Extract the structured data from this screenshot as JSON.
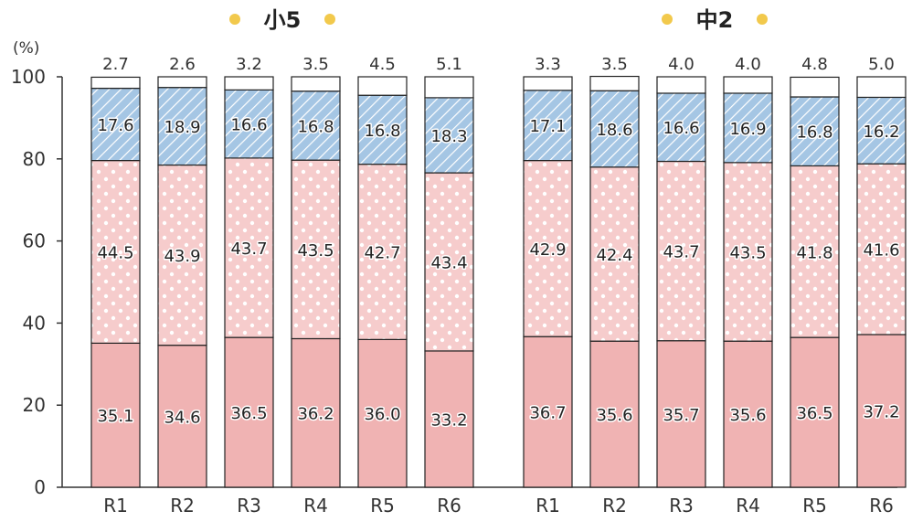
{
  "chart_data": {
    "type": "bar",
    "stacked": true,
    "unit": "(%)",
    "ylim": [
      0,
      100
    ],
    "yticks": [
      0,
      20,
      40,
      60,
      80,
      100
    ],
    "groups": [
      {
        "title": "小5",
        "categories": [
          "R1",
          "R2",
          "R3",
          "R4",
          "R5",
          "R6"
        ],
        "series": [
          {
            "values": [
              35.1,
              34.6,
              36.5,
              36.2,
              36.0,
              33.2
            ],
            "labels": [
              "35.1",
              "34.6",
              "36.5",
              "36.2",
              "36.0",
              "33.2"
            ]
          },
          {
            "values": [
              44.5,
              43.9,
              43.7,
              43.5,
              42.7,
              43.4
            ],
            "labels": [
              "44.5",
              "43.9",
              "43.7",
              "43.5",
              "42.7",
              "43.4"
            ]
          },
          {
            "values": [
              17.6,
              18.9,
              16.6,
              16.8,
              16.8,
              18.3
            ],
            "labels": [
              "17.6",
              "18.9",
              "16.6",
              "16.8",
              "16.8",
              "18.3"
            ]
          },
          {
            "values": [
              2.7,
              2.6,
              3.2,
              3.5,
              4.5,
              5.1
            ],
            "labels": [
              "2.7",
              "2.6",
              "3.2",
              "3.5",
              "4.5",
              "5.1"
            ]
          }
        ]
      },
      {
        "title": "中2",
        "categories": [
          "R1",
          "R2",
          "R3",
          "R4",
          "R5",
          "R6"
        ],
        "series": [
          {
            "values": [
              36.7,
              35.6,
              35.7,
              35.6,
              36.5,
              37.2
            ],
            "labels": [
              "36.7",
              "35.6",
              "35.7",
              "35.6",
              "36.5",
              "37.2"
            ]
          },
          {
            "values": [
              42.9,
              42.4,
              43.7,
              43.5,
              41.8,
              41.6
            ],
            "labels": [
              "42.9",
              "42.4",
              "43.7",
              "43.5",
              "41.8",
              "41.6"
            ]
          },
          {
            "values": [
              17.1,
              18.6,
              16.6,
              16.9,
              16.8,
              16.2
            ],
            "labels": [
              "17.1",
              "18.6",
              "16.6",
              "16.9",
              "16.8",
              "16.2"
            ]
          },
          {
            "values": [
              3.3,
              3.5,
              4.0,
              4.0,
              4.8,
              5.0
            ],
            "labels": [
              "3.3",
              "3.5",
              "4.0",
              "4.0",
              "4.8",
              "5.0"
            ]
          }
        ]
      }
    ],
    "colors": {
      "segment_1": "#f0b3b3",
      "segment_2": "#f6cccc",
      "segment_3": "#a5c6e4",
      "segment_4": "#ffffff",
      "title_dot": "#f2c94c"
    },
    "patterns": [
      "solid",
      "dots",
      "diagonal-hatch",
      "blank"
    ]
  }
}
